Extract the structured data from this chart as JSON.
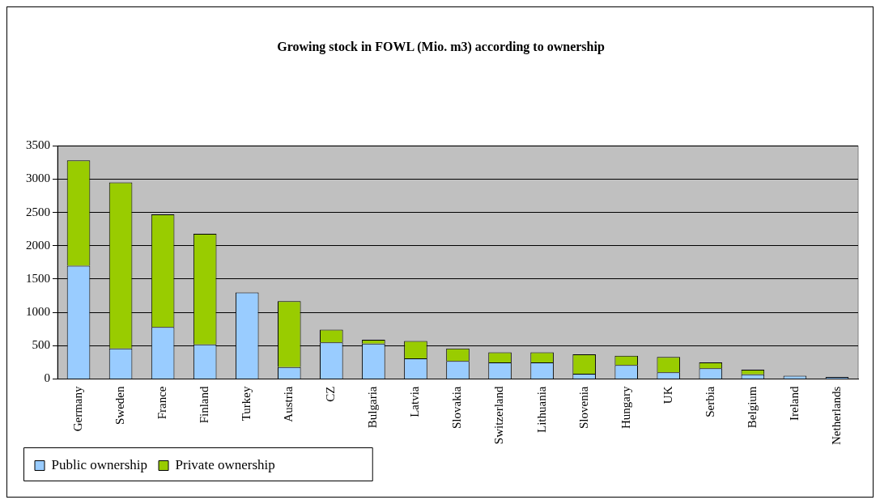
{
  "chart_data": {
    "type": "bar",
    "title": "Growing stock in FOWL (Mio. m3) according to ownership",
    "categories": [
      "Germany",
      "Sweden",
      "France",
      "Finland",
      "Turkey",
      "Austria",
      "CZ",
      "Bulgaria",
      "Latvia",
      "Slovakia",
      "Switzerland",
      "Lithuania",
      "Slovenia",
      "Hungary",
      "UK",
      "Serbia",
      "Belgium",
      "Ireland",
      "Netherlands"
    ],
    "stacked": true,
    "series": [
      {
        "name": "Public ownership",
        "color": "#99ccff",
        "values": [
          1700,
          460,
          780,
          520,
          1300,
          180,
          550,
          530,
          310,
          270,
          250,
          250,
          80,
          210,
          100,
          160,
          70,
          50,
          30
        ]
      },
      {
        "name": "Private ownership",
        "color": "#99cc00",
        "values": [
          1580,
          2490,
          1690,
          1660,
          0,
          990,
          190,
          60,
          260,
          190,
          150,
          150,
          290,
          140,
          230,
          90,
          70,
          null,
          null
        ]
      }
    ],
    "ylim": [
      0,
      3500
    ],
    "yticks": [
      0,
      500,
      1000,
      1500,
      2000,
      2500,
      3000,
      3500
    ],
    "grid": "y",
    "legend": "bottom"
  }
}
